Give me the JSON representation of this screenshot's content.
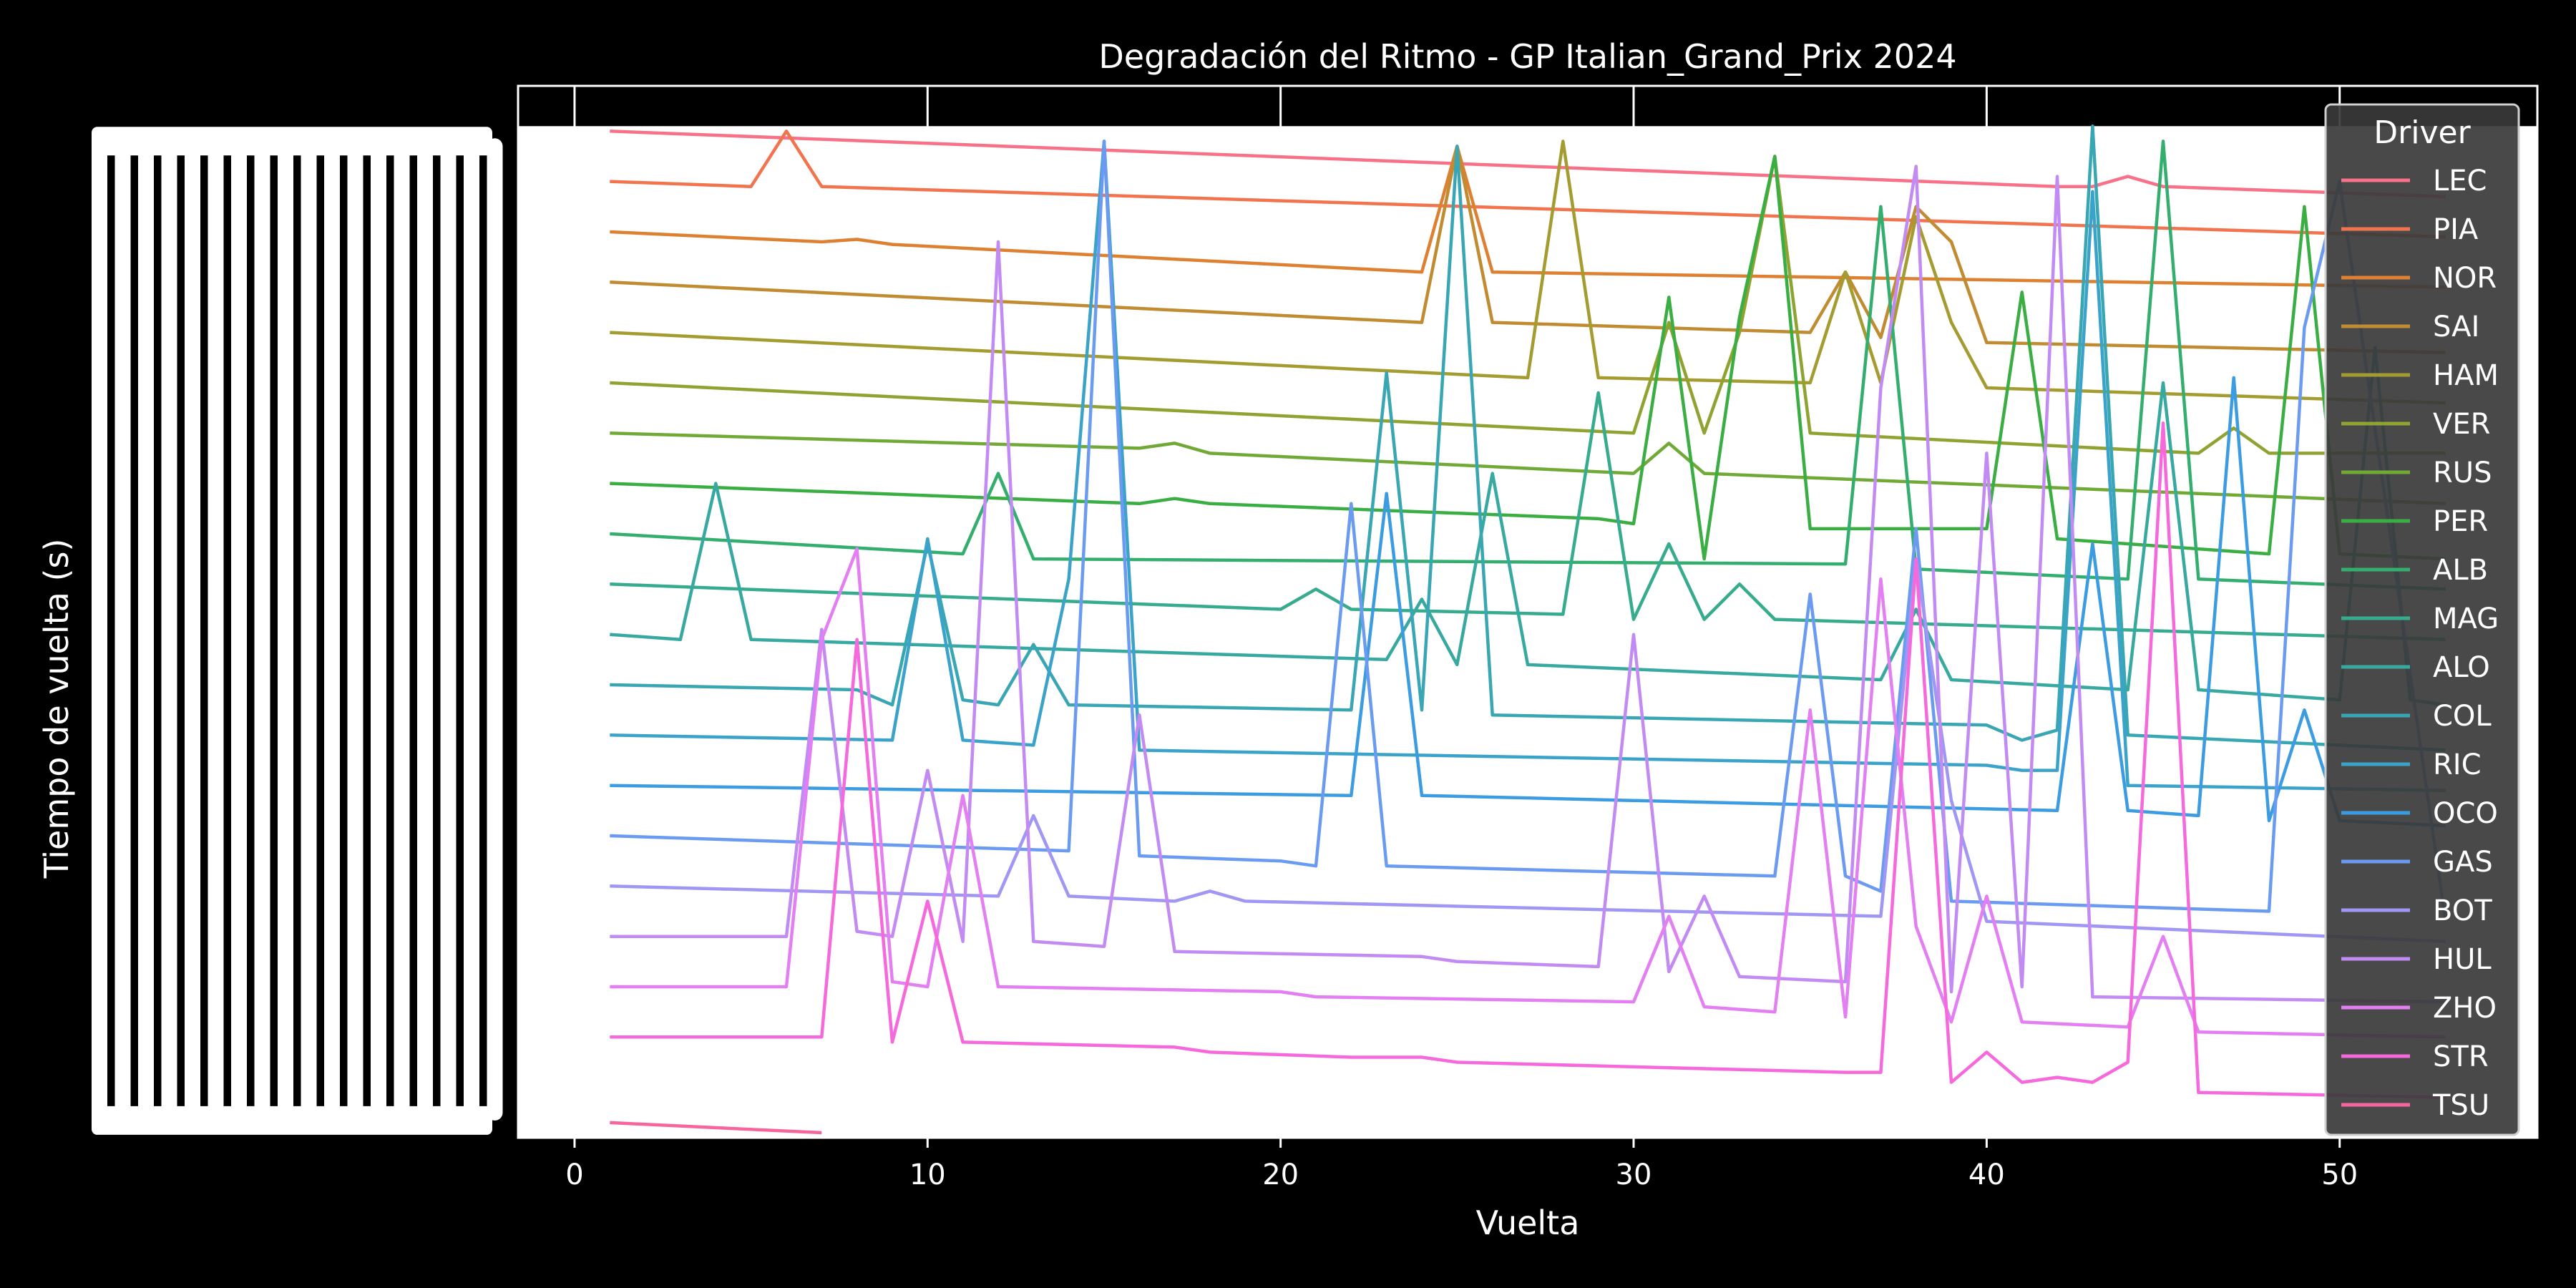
{
  "colors": {
    "background": "#000000",
    "plot_background": "#000000",
    "text": "#ffffff",
    "frame": "#ffffff",
    "grid": "#ffffff",
    "legend_box": "#3a3a3a",
    "legend_frame": "#cfcfcf"
  },
  "chart_data": {
    "type": "line",
    "title": "Degradación del Ritmo - GP Italian_Grand_Prix 2024",
    "xlabel": "Vuelta",
    "ylabel": "Tiempo de vuelta (s)",
    "xlim": [
      -1.6,
      55.6
    ],
    "ylim": [
      0,
      20.9
    ],
    "x_ticks": [
      0,
      10,
      20,
      30,
      40,
      50
    ],
    "grid": true,
    "legend_title": "Driver",
    "legend_position": "right",
    "y_tick_labels_note": "overlapping illegible timedelta labels (\"0 days 00:01:2x.xxx000\")",
    "series": [
      {
        "name": "LEC",
        "color": "#f77189",
        "points": [
          [
            1,
            20
          ],
          [
            42,
            18.9
          ],
          [
            43,
            18.9
          ],
          [
            44,
            19.1
          ],
          [
            45,
            18.9
          ],
          [
            53,
            18.7
          ]
        ]
      },
      {
        "name": "PIA",
        "color": "#f2744e",
        "points": [
          [
            1,
            19
          ],
          [
            5,
            18.9
          ],
          [
            6,
            20
          ],
          [
            7,
            18.9
          ],
          [
            53,
            17.9
          ]
        ]
      },
      {
        "name": "NOR",
        "color": "#dd8032",
        "points": [
          [
            1,
            18
          ],
          [
            7,
            17.8
          ],
          [
            8,
            17.85
          ],
          [
            9,
            17.75
          ],
          [
            24,
            17.2
          ],
          [
            25,
            19.7
          ],
          [
            26,
            17.2
          ],
          [
            53,
            16.9
          ]
        ]
      },
      {
        "name": "SAI",
        "color": "#c08b31",
        "points": [
          [
            1,
            17
          ],
          [
            24,
            16.2
          ],
          [
            25,
            19.7
          ],
          [
            26,
            16.2
          ],
          [
            35,
            16
          ],
          [
            36,
            17.2
          ],
          [
            37,
            15.9
          ],
          [
            38,
            18.5
          ],
          [
            39,
            17.8
          ],
          [
            40,
            15.8
          ],
          [
            53,
            15.6
          ]
        ]
      },
      {
        "name": "HAM",
        "color": "#a49b31",
        "points": [
          [
            1,
            16
          ],
          [
            27,
            15.1
          ],
          [
            28,
            19.8
          ],
          [
            29,
            15.1
          ],
          [
            35,
            15
          ],
          [
            36,
            17.2
          ],
          [
            37,
            15
          ],
          [
            38,
            18.3
          ],
          [
            39,
            16.2
          ],
          [
            40,
            14.9
          ],
          [
            53,
            14.6
          ]
        ]
      },
      {
        "name": "VER",
        "color": "#8ea331",
        "points": [
          [
            1,
            15
          ],
          [
            30,
            14
          ],
          [
            31,
            16.2
          ],
          [
            32,
            14
          ],
          [
            33,
            16
          ],
          [
            34,
            19.5
          ],
          [
            35,
            14
          ],
          [
            46,
            13.6
          ],
          [
            47,
            14.1
          ],
          [
            48,
            13.6
          ],
          [
            53,
            13.6
          ]
        ]
      },
      {
        "name": "RUS",
        "color": "#71a937",
        "points": [
          [
            1,
            14
          ],
          [
            16,
            13.7
          ],
          [
            17,
            13.8
          ],
          [
            18,
            13.6
          ],
          [
            30,
            13.2
          ],
          [
            31,
            13.8
          ],
          [
            32,
            13.2
          ],
          [
            53,
            12.6
          ]
        ]
      },
      {
        "name": "PER",
        "color": "#3aae42",
        "points": [
          [
            1,
            13
          ],
          [
            16,
            12.6
          ],
          [
            17,
            12.7
          ],
          [
            18,
            12.6
          ],
          [
            29,
            12.3
          ],
          [
            30,
            12.2
          ],
          [
            31,
            16.7
          ],
          [
            32,
            11.5
          ],
          [
            33,
            16.3
          ],
          [
            34,
            19.5
          ],
          [
            35,
            12.1
          ],
          [
            40,
            12.1
          ],
          [
            41,
            16.8
          ],
          [
            42,
            11.9
          ],
          [
            48,
            11.6
          ],
          [
            49,
            18.5
          ],
          [
            50,
            11.6
          ],
          [
            53,
            11.5
          ]
        ]
      },
      {
        "name": "ALB",
        "color": "#34ae6f",
        "points": [
          [
            1,
            12
          ],
          [
            11,
            11.6
          ],
          [
            12,
            13.2
          ],
          [
            13,
            11.5
          ],
          [
            36,
            11.4
          ],
          [
            37,
            18.5
          ],
          [
            38,
            11.3
          ],
          [
            44,
            11.1
          ],
          [
            45,
            19.8
          ],
          [
            46,
            11.1
          ],
          [
            53,
            10.9
          ]
        ]
      },
      {
        "name": "MAG",
        "color": "#36ab8d",
        "points": [
          [
            1,
            11
          ],
          [
            20,
            10.5
          ],
          [
            21,
            10.9
          ],
          [
            22,
            10.5
          ],
          [
            28,
            10.4
          ],
          [
            29,
            14.8
          ],
          [
            30,
            10.3
          ],
          [
            31,
            11.8
          ],
          [
            32,
            10.3
          ],
          [
            33,
            11
          ],
          [
            34,
            10.3
          ],
          [
            53,
            9.9
          ]
        ]
      },
      {
        "name": "ALO",
        "color": "#38a9a0",
        "points": [
          [
            1,
            10
          ],
          [
            3,
            9.9
          ],
          [
            4,
            13
          ],
          [
            5,
            9.9
          ],
          [
            23,
            9.5
          ],
          [
            24,
            10.7
          ],
          [
            25,
            9.4
          ],
          [
            26,
            13.2
          ],
          [
            27,
            9.4
          ],
          [
            37,
            9.1
          ],
          [
            38,
            10.5
          ],
          [
            39,
            9.1
          ],
          [
            44,
            8.9
          ],
          [
            45,
            15
          ],
          [
            46,
            8.9
          ],
          [
            50,
            8.7
          ],
          [
            51,
            15.7
          ],
          [
            52,
            8.7
          ],
          [
            53,
            8.6
          ]
        ]
      },
      {
        "name": "COL",
        "color": "#39a6b3",
        "points": [
          [
            1,
            9
          ],
          [
            8,
            8.9
          ],
          [
            9,
            8.6
          ],
          [
            10,
            11.8
          ],
          [
            11,
            8.7
          ],
          [
            12,
            8.6
          ],
          [
            13,
            9.8
          ],
          [
            14,
            8.6
          ],
          [
            22,
            8.5
          ],
          [
            23,
            15.2
          ],
          [
            24,
            8.5
          ],
          [
            25,
            19.7
          ],
          [
            26,
            8.4
          ],
          [
            40,
            8.2
          ],
          [
            41,
            7.9
          ],
          [
            42,
            8.1
          ],
          [
            43,
            20.1
          ],
          [
            44,
            8
          ],
          [
            53,
            7.7
          ]
        ]
      },
      {
        "name": "RIC",
        "color": "#3ba3c9",
        "points": [
          [
            1,
            8
          ],
          [
            9,
            7.9
          ],
          [
            10,
            11.9
          ],
          [
            11,
            7.9
          ],
          [
            13,
            7.8
          ],
          [
            14,
            11.1
          ],
          [
            15,
            19.8
          ],
          [
            16,
            7.7
          ],
          [
            40,
            7.4
          ],
          [
            41,
            7.3
          ],
          [
            42,
            7.3
          ],
          [
            43,
            18.8
          ],
          [
            44,
            7
          ],
          [
            53,
            6.9
          ]
        ]
      },
      {
        "name": "OCO",
        "color": "#3c9ce1",
        "points": [
          [
            1,
            7
          ],
          [
            22,
            6.8
          ],
          [
            23,
            12.8
          ],
          [
            24,
            6.8
          ],
          [
            42,
            6.5
          ],
          [
            43,
            11.8
          ],
          [
            44,
            6.5
          ],
          [
            46,
            6.4
          ],
          [
            47,
            15.1
          ],
          [
            48,
            6.3
          ],
          [
            49,
            8.5
          ],
          [
            50,
            6.3
          ],
          [
            53,
            6.2
          ]
        ]
      },
      {
        "name": "GAS",
        "color": "#6b9bf0",
        "points": [
          [
            1,
            6
          ],
          [
            14,
            5.7
          ],
          [
            15,
            19.8
          ],
          [
            16,
            5.6
          ],
          [
            20,
            5.5
          ],
          [
            21,
            5.4
          ],
          [
            22,
            12.6
          ],
          [
            23,
            5.4
          ],
          [
            34,
            5.2
          ],
          [
            35,
            10.8
          ],
          [
            36,
            5.2
          ],
          [
            37,
            4.9
          ],
          [
            38,
            12.1
          ],
          [
            39,
            4.7
          ],
          [
            48,
            4.5
          ],
          [
            49,
            16.1
          ],
          [
            50,
            19
          ],
          [
            53,
            4.3
          ]
        ]
      },
      {
        "name": "BOT",
        "color": "#a096f4",
        "points": [
          [
            1,
            5
          ],
          [
            12,
            4.8
          ],
          [
            13,
            6.4
          ],
          [
            14,
            4.8
          ],
          [
            17,
            4.7
          ],
          [
            18,
            4.9
          ],
          [
            19,
            4.7
          ],
          [
            37,
            4.4
          ],
          [
            38,
            11.5
          ],
          [
            39,
            6.7
          ],
          [
            40,
            4.3
          ],
          [
            53,
            3.9
          ]
        ]
      },
      {
        "name": "HUL",
        "color": "#c28bf3",
        "points": [
          [
            1,
            4
          ],
          [
            6,
            4
          ],
          [
            7,
            10.1
          ],
          [
            8,
            4.1
          ],
          [
            9,
            4
          ],
          [
            10,
            7.3
          ],
          [
            11,
            3.9
          ],
          [
            12,
            17.8
          ],
          [
            13,
            3.9
          ],
          [
            15,
            3.8
          ],
          [
            16,
            8.4
          ],
          [
            17,
            3.7
          ],
          [
            24,
            3.6
          ],
          [
            25,
            3.5
          ],
          [
            29,
            3.4
          ],
          [
            30,
            10
          ],
          [
            31,
            3.3
          ],
          [
            32,
            4.8
          ],
          [
            33,
            3.2
          ],
          [
            36,
            3.1
          ],
          [
            37,
            14.9
          ],
          [
            38,
            19.3
          ],
          [
            39,
            2.9
          ],
          [
            40,
            13.6
          ],
          [
            41,
            3
          ],
          [
            42,
            19.1
          ],
          [
            43,
            2.8
          ],
          [
            53,
            2.7
          ]
        ]
      },
      {
        "name": "ZHO",
        "color": "#e37ff2",
        "points": [
          [
            1,
            3
          ],
          [
            6,
            3
          ],
          [
            7,
            9.9
          ],
          [
            8,
            11.7
          ],
          [
            9,
            3.1
          ],
          [
            10,
            3
          ],
          [
            11,
            6.8
          ],
          [
            12,
            3
          ],
          [
            20,
            2.9
          ],
          [
            21,
            2.8
          ],
          [
            30,
            2.7
          ],
          [
            31,
            4.4
          ],
          [
            32,
            2.6
          ],
          [
            34,
            2.5
          ],
          [
            35,
            8.5
          ],
          [
            36,
            2.4
          ],
          [
            37,
            11.1
          ],
          [
            38,
            4.2
          ],
          [
            39,
            2.3
          ],
          [
            40,
            4.8
          ],
          [
            41,
            2.3
          ],
          [
            44,
            2.2
          ],
          [
            45,
            4
          ],
          [
            46,
            2.1
          ],
          [
            53,
            2
          ]
        ]
      },
      {
        "name": "STR",
        "color": "#f569dc",
        "points": [
          [
            1,
            2
          ],
          [
            7,
            2
          ],
          [
            8,
            9.9
          ],
          [
            9,
            1.9
          ],
          [
            10,
            4.7
          ],
          [
            11,
            1.9
          ],
          [
            17,
            1.8
          ],
          [
            18,
            1.7
          ],
          [
            22,
            1.6
          ],
          [
            24,
            1.6
          ],
          [
            25,
            1.5
          ],
          [
            36,
            1.3
          ],
          [
            37,
            1.3
          ],
          [
            38,
            11.5
          ],
          [
            39,
            1.1
          ],
          [
            40,
            1.7
          ],
          [
            41,
            1.1
          ],
          [
            42,
            1.2
          ],
          [
            43,
            1.1
          ],
          [
            44,
            1.5
          ],
          [
            45,
            14.2
          ],
          [
            46,
            0.9
          ],
          [
            53,
            0.8
          ]
        ]
      },
      {
        "name": "TSU",
        "color": "#f6669e",
        "points": [
          [
            1,
            0.3
          ],
          [
            7,
            0.1
          ]
        ]
      }
    ]
  }
}
